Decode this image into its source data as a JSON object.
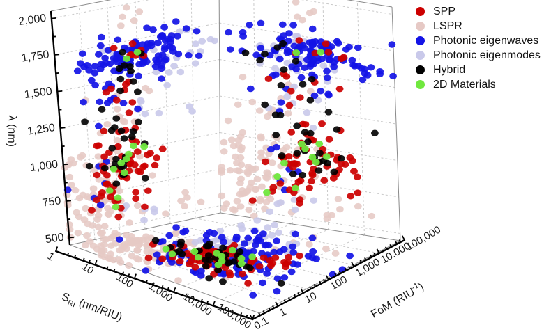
{
  "figure": {
    "background": "#ffffff"
  },
  "chart_data": {
    "type": "scatter",
    "projection": "3d-box-wall-and-floor-projections",
    "title": "",
    "axes": {
      "x": {
        "name": "S_RI",
        "title_pre": "S",
        "title_sub": "RI",
        "title_post": " (nm/RIU)",
        "scale": "log",
        "range": [
          1,
          100000
        ],
        "tick_labels": [
          "1",
          "10",
          "100",
          "1,000",
          "10,000",
          "100,000"
        ]
      },
      "y": {
        "name": "FoM",
        "title_pre": "FoM (RIU",
        "title_sup": "-1",
        "title_post": ")",
        "scale": "log",
        "range": [
          0.1,
          100000
        ],
        "tick_labels": [
          "0.1",
          "1",
          "10",
          "100",
          "1,000",
          "10,000",
          "100,000"
        ]
      },
      "z": {
        "name": "lambda",
        "title": "λ (nm)",
        "scale": "linear",
        "range": [
          450,
          2050
        ],
        "ticks": [
          500,
          750,
          1000,
          1250,
          1500,
          1750,
          2000
        ],
        "tick_labels": [
          "500",
          "750",
          "1,000",
          "1,250",
          "1,500",
          "1,750",
          "2,000"
        ]
      }
    },
    "grid": {
      "on": true,
      "style": "dashed"
    },
    "legend_position": "top-right",
    "seed": 20,
    "cluster_format": "[sri_log_center, sri_log_sigma, fom_log_center, fom_log_sigma, lambda_center_nm, lambda_sigma_nm, count]",
    "point_format": "[sri_log10, fom_log10, lambda_nm]",
    "series": [
      {
        "name": "SPP",
        "color": "#cc0000",
        "opacity": 0.92,
        "clusters": [
          [
            2.5,
            0.55,
            1.1,
            0.6,
            890,
            100,
            42
          ],
          [
            2.0,
            0.45,
            1.6,
            0.5,
            1320,
            110,
            10
          ],
          [
            2.7,
            0.6,
            2.0,
            0.45,
            1690,
            55,
            7
          ],
          [
            3.6,
            0.35,
            2.3,
            0.4,
            900,
            80,
            8
          ],
          [
            1.6,
            0.4,
            0.6,
            0.4,
            650,
            60,
            6
          ]
        ],
        "points": []
      },
      {
        "name": "LSPR",
        "color": "#e6c9c5",
        "opacity": 0.88,
        "clusters": [
          [
            1.0,
            0.75,
            0.5,
            0.8,
            780,
            150,
            82
          ],
          [
            1.5,
            0.5,
            1.1,
            0.6,
            1180,
            140,
            12
          ],
          [
            0.6,
            0.35,
            0.2,
            0.5,
            560,
            60,
            8
          ],
          [
            3.5,
            0.5,
            3.3,
            0.5,
            580,
            60,
            6
          ],
          [
            2.0,
            0.5,
            1.6,
            0.6,
            1900,
            70,
            5
          ]
        ],
        "points": []
      },
      {
        "name": "Photonic eigenwaves",
        "color": "#1414e6",
        "opacity": 0.92,
        "clusters": [
          [
            2.6,
            0.95,
            2.0,
            1.05,
            1650,
            75,
            100
          ],
          [
            2.3,
            0.55,
            1.2,
            0.6,
            1400,
            90,
            12
          ],
          [
            1.7,
            0.5,
            0.8,
            0.5,
            850,
            90,
            6
          ]
        ],
        "points": []
      },
      {
        "name": "Photonic eigenmodes",
        "color": "#c9c9ea",
        "opacity": 0.9,
        "clusters": [
          [
            2.2,
            0.5,
            3.3,
            0.8,
            1600,
            90,
            26
          ],
          [
            2.0,
            0.45,
            2.6,
            0.6,
            1250,
            90,
            8
          ],
          [
            1.9,
            0.4,
            1.9,
            0.5,
            600,
            60,
            6
          ]
        ],
        "points": []
      },
      {
        "name": "Hybrid",
        "color": "#000000",
        "opacity": 0.9,
        "clusters": [
          [
            2.3,
            0.65,
            1.3,
            0.6,
            1080,
            170,
            18
          ],
          [
            2.1,
            0.55,
            1.7,
            0.5,
            1560,
            90,
            8
          ],
          [
            2.7,
            0.35,
            1.0,
            0.4,
            900,
            60,
            9
          ]
        ],
        "points": []
      },
      {
        "name": "2D Materials",
        "color": "#70e83e",
        "opacity": 0.95,
        "clusters": [],
        "points": [
          [
            1.3,
            0.9,
            640
          ],
          [
            2.4,
            1.5,
            980
          ],
          [
            2.6,
            1.2,
            930
          ],
          [
            2.2,
            1.6,
            1630
          ],
          [
            2.9,
            2.0,
            1660
          ],
          [
            1.8,
            1.3,
            860
          ],
          [
            3.0,
            1.4,
            950
          ],
          [
            2.7,
            0.9,
            900
          ],
          [
            2.3,
            2.1,
            1010
          ],
          [
            1.6,
            0.7,
            760
          ],
          [
            2.8,
            1.7,
            1030
          ],
          [
            2.1,
            1.0,
            700
          ]
        ]
      }
    ],
    "box": {
      "L": [
        100,
        352
      ],
      "F": [
        372,
        450
      ],
      "R": [
        574,
        346
      ],
      "B": [
        316,
        306
      ],
      "LT": [
        73,
        16
      ],
      "BT": [
        314,
        -30
      ],
      "RT": [
        562,
        10
      ],
      "sri_axis": [
        [
          80,
          361
        ],
        [
          362,
          459
        ]
      ],
      "fom_axis": [
        [
          362,
          459
        ],
        [
          580,
          345
        ]
      ]
    },
    "style": {
      "grid_color": "#c9c9c9",
      "edge_color": "#8a8a8a",
      "axis_color": "#000000",
      "dot_rx": 5.4,
      "dot_ry": 4.7
    }
  }
}
